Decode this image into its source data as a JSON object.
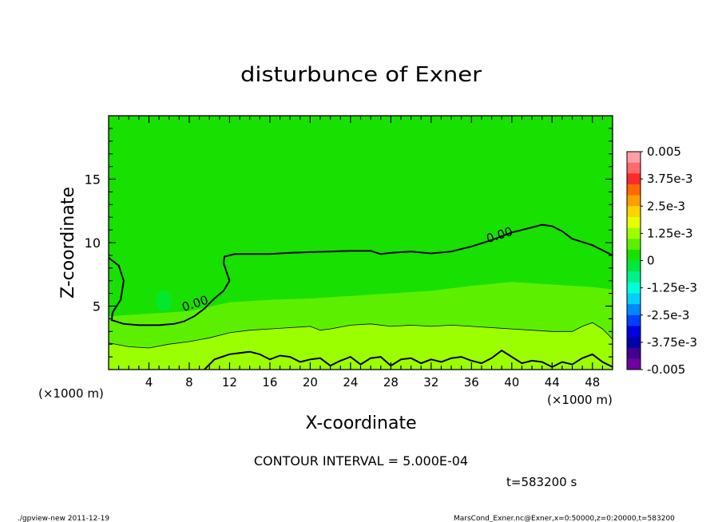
{
  "chart_data": {
    "type": "contour",
    "title": "disturbunce of Exner",
    "xlabel": "X-coordinate",
    "ylabel": "Z-coordinate",
    "x_unit_left": "(×1000 m)",
    "x_unit_right": "(×1000 m)",
    "xlim": [
      0,
      50
    ],
    "ylim": [
      0,
      20
    ],
    "x_ticks": [
      4,
      8,
      12,
      16,
      20,
      24,
      28,
      32,
      36,
      40,
      44,
      48
    ],
    "y_ticks": [
      5,
      10,
      15
    ],
    "contour_interval_text": "CONTOUR INTERVAL = 5.000E-04",
    "time_text": "t=583200 s",
    "contour_labels": [
      {
        "text": "0.00",
        "x": 8.7,
        "z": 4.9
      },
      {
        "text": "0.00",
        "x": 38.9,
        "z": 10.3
      }
    ],
    "zero_contour_upper": [
      [
        0,
        8.8
      ],
      [
        1,
        8.2
      ],
      [
        1.5,
        7.0
      ],
      [
        1.2,
        5.5
      ],
      [
        0.4,
        4.5
      ],
      [
        0.3,
        3.9
      ],
      [
        1.5,
        3.6
      ],
      [
        3,
        3.5
      ],
      [
        5,
        3.5
      ],
      [
        6.5,
        3.6
      ],
      [
        7.5,
        3.8
      ],
      [
        8.5,
        4.2
      ],
      [
        9.5,
        4.8
      ],
      [
        10.5,
        5.6
      ],
      [
        11.4,
        6.2
      ],
      [
        12,
        7.0
      ],
      [
        11.4,
        8.4
      ],
      [
        11.5,
        8.9
      ],
      [
        12.5,
        9.1
      ],
      [
        14,
        9.1
      ],
      [
        16,
        9.1
      ],
      [
        18,
        9.2
      ],
      [
        20,
        9.25
      ],
      [
        22,
        9.3
      ],
      [
        24,
        9.35
      ],
      [
        26,
        9.35
      ],
      [
        27,
        9.1
      ],
      [
        28,
        9.2
      ],
      [
        30,
        9.3
      ],
      [
        32,
        9.15
      ],
      [
        34,
        9.3
      ],
      [
        36,
        9.7
      ],
      [
        38,
        10.2
      ],
      [
        40,
        10.8
      ],
      [
        42,
        11.2
      ],
      [
        43,
        11.4
      ],
      [
        44,
        11.3
      ],
      [
        45,
        10.9
      ],
      [
        46,
        10.3
      ],
      [
        48,
        9.8
      ],
      [
        50,
        9.0
      ]
    ],
    "zero_contour_lower": [
      [
        9.5,
        0
      ],
      [
        10.5,
        0.8
      ],
      [
        12,
        1.2
      ],
      [
        13,
        1.3
      ],
      [
        14,
        1.4
      ],
      [
        15,
        1.2
      ],
      [
        16,
        0.8
      ],
      [
        17,
        1.1
      ],
      [
        18,
        1.0
      ],
      [
        19,
        0.6
      ],
      [
        20,
        0.8
      ],
      [
        21,
        0.9
      ],
      [
        22,
        0.3
      ],
      [
        23,
        0.7
      ],
      [
        24,
        1.0
      ],
      [
        25,
        0.4
      ],
      [
        26,
        0.9
      ],
      [
        27,
        1.0
      ],
      [
        28,
        0.3
      ],
      [
        29,
        0.8
      ],
      [
        30,
        0.9
      ],
      [
        31,
        0.5
      ],
      [
        32,
        0.8
      ],
      [
        33,
        0.6
      ],
      [
        34,
        0.9
      ],
      [
        35,
        1.0
      ],
      [
        36,
        0.7
      ],
      [
        37,
        0.5
      ],
      [
        38,
        0.9
      ],
      [
        39,
        1.5
      ],
      [
        40,
        1.0
      ],
      [
        41,
        0.5
      ],
      [
        42,
        0.7
      ],
      [
        43,
        0.6
      ],
      [
        44,
        0.2
      ],
      [
        45,
        0.6
      ],
      [
        46,
        0.4
      ],
      [
        47,
        0.9
      ],
      [
        48,
        1.2
      ],
      [
        49,
        0.6
      ],
      [
        50,
        0.2
      ]
    ],
    "thin_contour": [
      [
        0,
        2.1
      ],
      [
        2,
        1.8
      ],
      [
        4,
        1.7
      ],
      [
        6,
        2.0
      ],
      [
        8,
        2.2
      ],
      [
        10,
        2.5
      ],
      [
        12,
        2.9
      ],
      [
        14,
        3.1
      ],
      [
        16,
        3.2
      ],
      [
        18,
        3.3
      ],
      [
        20,
        3.4
      ],
      [
        21,
        3.1
      ],
      [
        22,
        3.2
      ],
      [
        24,
        3.5
      ],
      [
        26,
        3.6
      ],
      [
        28,
        3.4
      ],
      [
        30,
        3.5
      ],
      [
        32,
        3.4
      ],
      [
        34,
        3.5
      ],
      [
        36,
        3.4
      ],
      [
        38,
        3.3
      ],
      [
        40,
        3.2
      ],
      [
        42,
        3.1
      ],
      [
        44,
        3.0
      ],
      [
        46,
        3.0
      ],
      [
        47,
        3.4
      ],
      [
        48,
        3.7
      ],
      [
        49,
        3.2
      ],
      [
        50,
        2.4
      ]
    ],
    "colorbar": {
      "labels": [
        "0.005",
        "3.75e-3",
        "2.5e-3",
        "1.25e-3",
        "0",
        "-1.25e-3",
        "-2.5e-3",
        "-3.75e-3",
        "-0.005"
      ],
      "colors": [
        "#ff9fa8",
        "#ff6a6a",
        "#ff2a2a",
        "#ff6a00",
        "#ff9f00",
        "#ffd400",
        "#e6ff00",
        "#9cff00",
        "#5cf000",
        "#18e000",
        "#00e83c",
        "#00f08a",
        "#00ffd8",
        "#00cfff",
        "#0088ff",
        "#0040ff",
        "#0000e0",
        "#0000a8",
        "#400090",
        "#7000a0"
      ]
    },
    "field_colors": {
      "upper": "#18e000",
      "lower": "#5cf000",
      "bottom": "#9cff00",
      "blob": "#00e83c"
    }
  },
  "footer": {
    "left": "./gpview-new   2011-12-19",
    "right": "MarsCond_Exner.nc@Exner,x=0:50000,z=0:20000,t=583200"
  }
}
